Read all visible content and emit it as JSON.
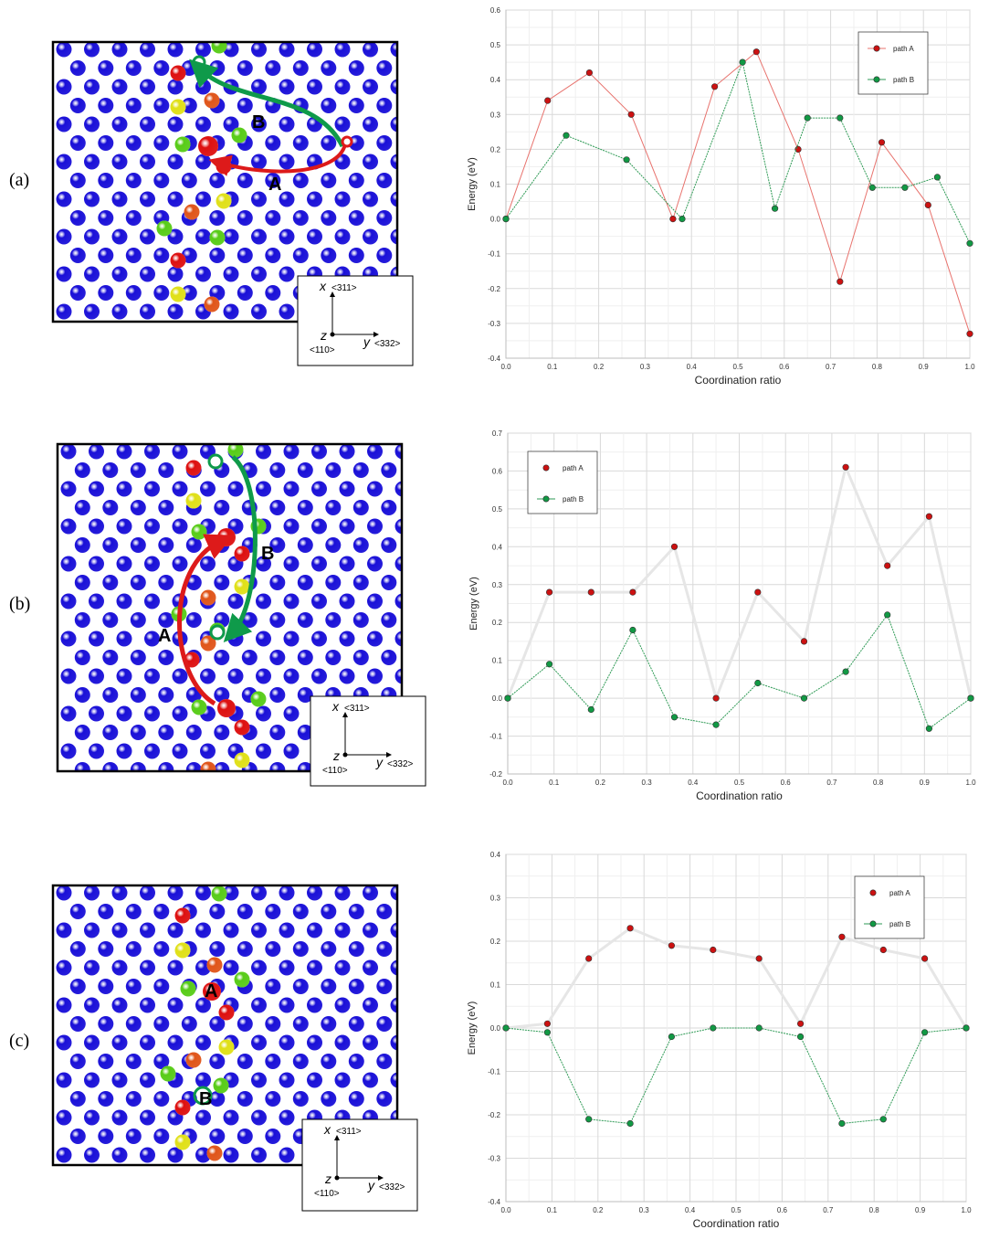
{
  "panels": [
    {
      "label": "(a)",
      "structure": {
        "path_labels": [
          "A",
          "B"
        ],
        "axes": {
          "x": "x",
          "x_dir": "<311>",
          "y": "y",
          "y_dir": "<332>",
          "z": "z",
          "z_dir": "<110>"
        }
      },
      "chart_data": {
        "type": "line",
        "xlabel": "Coordination ratio",
        "ylabel": "Energy (eV)",
        "xlim": [
          0,
          1
        ],
        "ylim": [
          -0.4,
          0.6
        ],
        "yticks": [
          -0.4,
          -0.3,
          -0.2,
          -0.1,
          0.0,
          0.1,
          0.2,
          0.3,
          0.4,
          0.5,
          0.6
        ],
        "xticks": [
          0.0,
          0.1,
          0.2,
          0.3,
          0.4,
          0.5,
          0.6,
          0.7,
          0.8,
          0.9,
          1.0
        ],
        "grid": true,
        "legend_position": "top-right",
        "series": [
          {
            "name": "path A",
            "color": "#e8736e",
            "marker": "#cc1111",
            "line": true,
            "x": [
              0.0,
              0.09,
              0.18,
              0.27,
              0.36,
              0.45,
              0.54,
              0.63,
              0.72,
              0.81,
              0.91,
              1.0
            ],
            "y": [
              0.0,
              0.34,
              0.42,
              0.3,
              0.0,
              0.38,
              0.48,
              0.2,
              -0.18,
              0.22,
              0.04,
              -0.33
            ]
          },
          {
            "name": "path B",
            "color": "#2e9a55",
            "marker": "#119944",
            "line": true,
            "x": [
              0.0,
              0.13,
              0.26,
              0.38,
              0.51,
              0.58,
              0.65,
              0.72,
              0.79,
              0.86,
              0.93,
              1.0
            ],
            "y": [
              0.0,
              0.24,
              0.17,
              0.0,
              0.45,
              0.03,
              0.29,
              0.29,
              0.09,
              0.09,
              0.12,
              -0.07
            ]
          }
        ]
      }
    },
    {
      "label": "(b)",
      "structure": {
        "path_labels": [
          "A",
          "B"
        ],
        "axes": {
          "x": "x",
          "x_dir": "<311>",
          "y": "y",
          "y_dir": "<332>",
          "z": "z",
          "z_dir": "<110>"
        }
      },
      "chart_data": {
        "type": "line",
        "xlabel": "Coordination ratio",
        "ylabel": "Energy (eV)",
        "xlim": [
          0,
          1
        ],
        "ylim": [
          -0.2,
          0.7
        ],
        "yticks": [
          -0.2,
          -0.1,
          0.0,
          0.1,
          0.2,
          0.3,
          0.4,
          0.5,
          0.6,
          0.7
        ],
        "xticks": [
          0.0,
          0.1,
          0.2,
          0.3,
          0.4,
          0.5,
          0.6,
          0.7,
          0.8,
          0.9,
          1.0
        ],
        "grid": true,
        "legend_position": "top-left",
        "series": [
          {
            "name": "path A",
            "color": "#e6e6e6",
            "marker": "#cc1111",
            "line": false,
            "x": [
              0.0,
              0.09,
              0.18,
              0.27,
              0.36,
              0.45,
              0.54,
              0.64,
              0.73,
              0.82,
              0.91,
              1.0
            ],
            "y": [
              0.0,
              0.28,
              0.28,
              0.28,
              0.4,
              0.0,
              0.28,
              0.15,
              0.61,
              0.35,
              0.48,
              0.0
            ]
          },
          {
            "name": "path B",
            "color": "#2e9a55",
            "marker": "#119944",
            "line": true,
            "x": [
              0.0,
              0.09,
              0.18,
              0.27,
              0.36,
              0.45,
              0.54,
              0.64,
              0.73,
              0.82,
              0.91,
              1.0
            ],
            "y": [
              0.0,
              0.09,
              -0.03,
              0.18,
              -0.05,
              -0.07,
              0.04,
              0.0,
              0.07,
              0.22,
              -0.08,
              0.0
            ]
          }
        ]
      }
    },
    {
      "label": "(c)",
      "structure": {
        "path_labels": [
          "A",
          "B"
        ],
        "axes": {
          "x": "x",
          "x_dir": "<311>",
          "y": "y",
          "y_dir": "<332>",
          "z": "z",
          "z_dir": "<110>"
        }
      },
      "chart_data": {
        "type": "line",
        "xlabel": "Coordination ratio",
        "ylabel": "Energy (eV)",
        "xlim": [
          0,
          1
        ],
        "ylim": [
          -0.4,
          0.4
        ],
        "yticks": [
          -0.4,
          -0.3,
          -0.2,
          -0.1,
          0.0,
          0.1,
          0.2,
          0.3,
          0.4
        ],
        "xticks": [
          0.0,
          0.1,
          0.2,
          0.3,
          0.4,
          0.5,
          0.6,
          0.7,
          0.8,
          0.9,
          1.0
        ],
        "grid": true,
        "legend_position": "top-right",
        "series": [
          {
            "name": "path A",
            "color": "#e6e6e6",
            "marker": "#cc1111",
            "line": false,
            "x": [
              0.0,
              0.09,
              0.18,
              0.27,
              0.36,
              0.45,
              0.55,
              0.64,
              0.73,
              0.82,
              0.91,
              1.0
            ],
            "y": [
              0.0,
              0.01,
              0.16,
              0.23,
              0.19,
              0.18,
              0.16,
              0.01,
              0.21,
              0.18,
              0.16,
              0.0
            ]
          },
          {
            "name": "path B",
            "color": "#2e9a55",
            "marker": "#119944",
            "line": true,
            "x": [
              0.0,
              0.09,
              0.18,
              0.27,
              0.36,
              0.45,
              0.55,
              0.64,
              0.73,
              0.82,
              0.91,
              1.0
            ],
            "y": [
              0.0,
              -0.01,
              -0.21,
              -0.22,
              -0.02,
              0.0,
              0.0,
              -0.02,
              -0.22,
              -0.21,
              -0.01,
              0.0
            ]
          }
        ]
      }
    }
  ]
}
